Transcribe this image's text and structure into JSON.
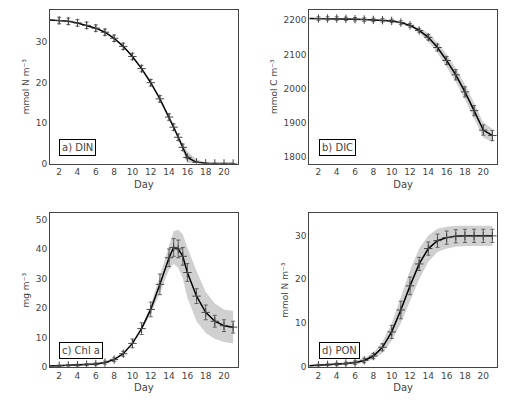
{
  "chart_data": [
    {
      "type": "line",
      "xlabel": "Day",
      "ylabel": "mmol N m⁻³",
      "annotations": [
        "a) DIN"
      ],
      "xlim": [
        1,
        21.5
      ],
      "xticks": [
        2,
        4,
        6,
        8,
        10,
        12,
        14,
        16,
        18,
        20
      ],
      "ylim": [
        0,
        38
      ],
      "yticks": [
        0,
        10,
        20,
        30
      ],
      "grid": false,
      "series": [
        {
          "type": "area",
          "color": "#aaaaaa",
          "x": [
            1,
            2,
            3,
            4,
            5,
            6,
            7,
            8,
            9,
            10,
            11,
            12,
            13,
            14,
            14.5,
            15,
            15.5,
            16,
            17,
            18,
            19,
            20,
            21
          ],
          "upper": [
            35.5,
            35.4,
            35.2,
            34.8,
            34.2,
            33.5,
            32.5,
            31.0,
            29.0,
            26.5,
            23.5,
            20.0,
            16.0,
            11.5,
            9.0,
            7.0,
            5.0,
            3.0,
            1.0,
            0.3,
            0.1,
            0.05,
            0.05
          ],
          "lower": [
            35.5,
            35.4,
            35.2,
            34.8,
            34.2,
            33.5,
            32.5,
            31.0,
            29.0,
            26.5,
            23.5,
            20.0,
            16.0,
            11.5,
            9.0,
            6.0,
            3.0,
            0.2,
            0.0,
            0.0,
            0.0,
            0.0,
            0.0
          ]
        },
        {
          "type": "line",
          "color": "black",
          "x": [
            1,
            2,
            3,
            4,
            5,
            6,
            7,
            8,
            9,
            10,
            11,
            12,
            13,
            14,
            14.5,
            15,
            15.5,
            16,
            17,
            18,
            19,
            20,
            21
          ],
          "values": [
            35.5,
            35.4,
            35.2,
            34.8,
            34.2,
            33.5,
            32.5,
            31.0,
            29.0,
            26.5,
            23.5,
            20.0,
            16.0,
            11.5,
            9.0,
            6.5,
            4.0,
            1.5,
            0.3,
            0.05,
            0.02,
            0.01,
            0.01
          ]
        },
        {
          "type": "scatter",
          "color": "#444444",
          "marker": "plus",
          "x": [
            2,
            3,
            4,
            5,
            6,
            7,
            8,
            9,
            10,
            11,
            12,
            13,
            14,
            14.5,
            15,
            15.5,
            16,
            17,
            18,
            19,
            20,
            21
          ],
          "values": [
            35.4,
            35.2,
            34.8,
            34.2,
            33.5,
            32.5,
            31.0,
            29.0,
            26.5,
            23.5,
            20.0,
            16.0,
            11.5,
            9.0,
            6.5,
            4.0,
            1.5,
            0.3,
            0.05,
            0.02,
            0.01,
            0.01
          ],
          "error": [
            0.8,
            0.8,
            0.8,
            0.8,
            0.8,
            0.8,
            0.8,
            0.8,
            0.8,
            0.8,
            0.8,
            0.8,
            0.8,
            0.8,
            0.8,
            0.8,
            0.3,
            0.05,
            0.02,
            0.01,
            0.01,
            0.01
          ]
        }
      ]
    },
    {
      "type": "line",
      "xlabel": "Day",
      "ylabel": "mmol C m⁻³",
      "annotations": [
        "b) DIC"
      ],
      "xlim": [
        1,
        21.5
      ],
      "xticks": [
        2,
        4,
        6,
        8,
        10,
        12,
        14,
        16,
        18,
        20
      ],
      "ylim": [
        1780,
        2230
      ],
      "yticks": [
        1800,
        1900,
        2000,
        2100,
        2200
      ],
      "grid": false,
      "series": [
        {
          "type": "area",
          "color": "#aaaaaa",
          "x": [
            1,
            2,
            3,
            4,
            5,
            6,
            7,
            8,
            9,
            10,
            11,
            12,
            13,
            14,
            15,
            16,
            17,
            18,
            19,
            20,
            21
          ],
          "upper": [
            2205,
            2205,
            2205,
            2205,
            2204,
            2203,
            2202,
            2201,
            2200,
            2198,
            2194,
            2188,
            2177,
            2162,
            2135,
            2100,
            2060,
            2012,
            1958,
            1900,
            1882
          ],
          "lower": [
            2205,
            2205,
            2205,
            2205,
            2204,
            2203,
            2202,
            2201,
            2200,
            2198,
            2192,
            2182,
            2163,
            2138,
            2105,
            2064,
            2020,
            1968,
            1912,
            1856,
            1842
          ]
        },
        {
          "type": "line",
          "color": "black",
          "x": [
            1,
            2,
            3,
            4,
            5,
            6,
            7,
            8,
            9,
            10,
            11,
            12,
            13,
            14,
            15,
            16,
            17,
            18,
            19,
            20,
            21
          ],
          "values": [
            2205,
            2205,
            2205,
            2205,
            2204,
            2203,
            2202,
            2201,
            2200,
            2198,
            2193,
            2185,
            2170,
            2150,
            2120,
            2082,
            2040,
            1990,
            1935,
            1878,
            1862
          ]
        },
        {
          "type": "scatter",
          "color": "#444444",
          "marker": "plus",
          "x": [
            2,
            3,
            4,
            5,
            6,
            7,
            8,
            9,
            10,
            11,
            12,
            13,
            14,
            15,
            16,
            17,
            18,
            19,
            20,
            21
          ],
          "values": [
            2205,
            2205,
            2205,
            2204,
            2203,
            2202,
            2201,
            2200,
            2198,
            2193,
            2185,
            2170,
            2150,
            2120,
            2082,
            2040,
            1990,
            1935,
            1878,
            1862
          ],
          "error": [
            5,
            5,
            5,
            5,
            5,
            5,
            5,
            5,
            5,
            5,
            5,
            5,
            8,
            10,
            12,
            15,
            15,
            15,
            15,
            15
          ]
        }
      ]
    },
    {
      "type": "line",
      "xlabel": "Day",
      "ylabel": "mg m⁻³",
      "annotations": [
        "c) Chl a"
      ],
      "xlim": [
        1,
        21.5
      ],
      "xticks": [
        2,
        4,
        6,
        8,
        10,
        12,
        14,
        16,
        18,
        20
      ],
      "ylim": [
        0,
        52
      ],
      "yticks": [
        0,
        10,
        20,
        30,
        40,
        50
      ],
      "grid": false,
      "series": [
        {
          "type": "area",
          "color": "#aaaaaa",
          "x": [
            1,
            2,
            3,
            4,
            5,
            6,
            7,
            8,
            9,
            10,
            11,
            12,
            13,
            14,
            14.5,
            15,
            15.5,
            16,
            17,
            18,
            19,
            20,
            21
          ],
          "upper": [
            0.3,
            0.4,
            0.5,
            0.6,
            0.8,
            1.0,
            1.5,
            2.5,
            4.5,
            8.0,
            13.5,
            21.0,
            31.0,
            41.0,
            46.0,
            46.5,
            45.0,
            40.5,
            32.5,
            25.5,
            21.5,
            19.5,
            19.0
          ],
          "lower": [
            0.3,
            0.4,
            0.5,
            0.6,
            0.8,
            1.0,
            1.5,
            2.5,
            4.5,
            8.0,
            12.5,
            18.0,
            25.0,
            33.0,
            35.0,
            33.5,
            30.0,
            23.5,
            15.5,
            11.5,
            9.5,
            8.5,
            8.0
          ]
        },
        {
          "type": "line",
          "color": "black",
          "x": [
            1,
            2,
            3,
            4,
            5,
            6,
            7,
            8,
            9,
            10,
            11,
            12,
            13,
            14,
            14.5,
            15,
            15.5,
            16,
            17,
            18,
            19,
            20,
            21
          ],
          "values": [
            0.3,
            0.4,
            0.5,
            0.6,
            0.8,
            1.0,
            1.5,
            2.5,
            4.5,
            8.0,
            13.0,
            19.5,
            28.0,
            37.0,
            40.5,
            40.0,
            37.5,
            32.0,
            24.0,
            18.5,
            15.5,
            14.0,
            13.5
          ]
        },
        {
          "type": "scatter",
          "color": "#444444",
          "marker": "plus",
          "x": [
            2,
            3,
            4,
            5,
            6,
            7,
            8,
            9,
            10,
            11,
            12,
            13,
            14,
            14.5,
            15,
            15.5,
            16,
            17,
            18,
            19,
            20,
            21
          ],
          "values": [
            0.4,
            0.5,
            0.6,
            0.8,
            1.0,
            1.5,
            2.5,
            4.5,
            8.0,
            13.0,
            19.5,
            28.0,
            37.0,
            40.5,
            40.0,
            37.5,
            32.0,
            24.0,
            18.5,
            15.5,
            14.0,
            13.5
          ],
          "error": [
            0.2,
            0.2,
            0.3,
            0.3,
            0.4,
            0.5,
            0.6,
            0.8,
            1.5,
            2.0,
            2.5,
            3.5,
            3.0,
            3.0,
            3.0,
            3.0,
            3.0,
            2.5,
            2.5,
            2.0,
            2.0,
            2.0
          ]
        }
      ]
    },
    {
      "type": "line",
      "xlabel": "Day",
      "ylabel": "mmol N m⁻³",
      "annotations": [
        "d) PON"
      ],
      "xlim": [
        1,
        21.5
      ],
      "xticks": [
        2,
        4,
        6,
        8,
        10,
        12,
        14,
        16,
        18,
        20
      ],
      "ylim": [
        0,
        35
      ],
      "yticks": [
        0,
        10,
        20,
        30
      ],
      "grid": false,
      "series": [
        {
          "type": "area",
          "color": "#aaaaaa",
          "x": [
            1,
            2,
            3,
            4,
            5,
            6,
            7,
            8,
            9,
            10,
            11,
            12,
            13,
            14,
            15,
            16,
            17,
            18,
            19,
            20,
            21
          ],
          "upper": [
            0.5,
            0.6,
            0.7,
            0.8,
            1.1,
            1.4,
            2.0,
            3.2,
            5.8,
            10.0,
            16.0,
            22.0,
            27.0,
            30.0,
            31.5,
            32.0,
            32.2,
            32.2,
            32.2,
            32.2,
            32.2
          ],
          "lower": [
            0.1,
            0.2,
            0.3,
            0.4,
            0.5,
            0.6,
            1.0,
            1.8,
            3.2,
            6.0,
            10.0,
            15.0,
            20.0,
            24.0,
            26.2,
            27.0,
            27.4,
            27.6,
            27.6,
            27.6,
            27.6
          ]
        },
        {
          "type": "line",
          "color": "black",
          "x": [
            1,
            2,
            3,
            4,
            5,
            6,
            7,
            8,
            9,
            10,
            11,
            12,
            13,
            14,
            15,
            16,
            17,
            18,
            19,
            20,
            21
          ],
          "values": [
            0.3,
            0.4,
            0.5,
            0.6,
            0.8,
            1.0,
            1.5,
            2.5,
            4.5,
            8.0,
            13.0,
            18.5,
            23.5,
            27.0,
            28.8,
            29.5,
            29.8,
            29.9,
            29.9,
            29.9,
            29.9
          ]
        },
        {
          "type": "scatter",
          "color": "#444444",
          "marker": "plus",
          "x": [
            2,
            3,
            4,
            5,
            6,
            7,
            8,
            9,
            10,
            11,
            12,
            13,
            14,
            15,
            16,
            17,
            18,
            19,
            20,
            21
          ],
          "values": [
            0.4,
            0.5,
            0.6,
            0.8,
            1.0,
            1.5,
            2.5,
            4.5,
            8.0,
            13.0,
            18.5,
            23.5,
            27.0,
            28.8,
            29.5,
            29.8,
            29.9,
            29.9,
            29.9,
            29.9
          ],
          "error": [
            0.2,
            0.2,
            0.3,
            0.3,
            0.4,
            0.5,
            0.6,
            0.8,
            1.5,
            2.0,
            2.0,
            1.5,
            1.5,
            1.5,
            1.5,
            1.5,
            1.5,
            1.5,
            1.5,
            1.5
          ]
        }
      ]
    }
  ]
}
